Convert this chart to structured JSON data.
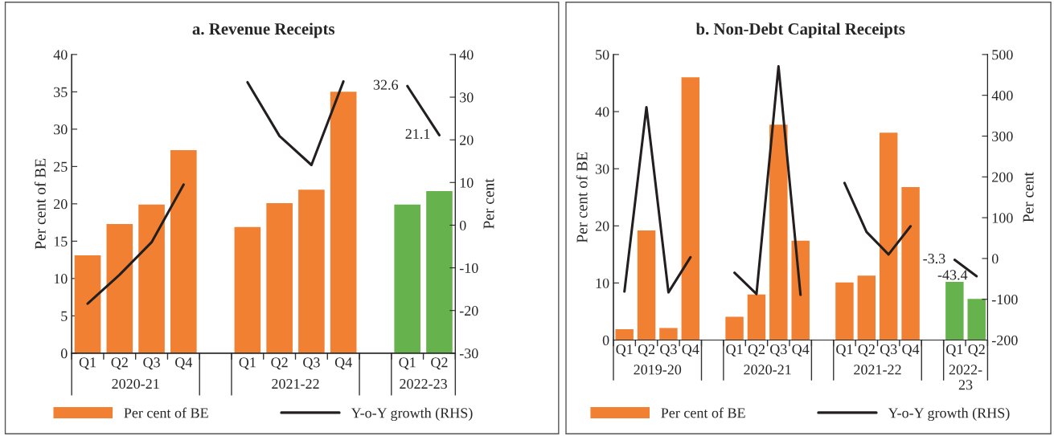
{
  "chart_data": [
    {
      "type": "bar",
      "title": "a. Revenue Receipts",
      "ylabel": "Per cent of BE",
      "y2label": "Per cent",
      "categories": [
        "Q1",
        "Q2",
        "Q3",
        "Q4",
        null,
        "Q1",
        "Q2",
        "Q3",
        "Q4",
        null,
        "Q1",
        "Q2"
      ],
      "annotations": [
        "2020-21",
        "2021-22",
        "2022-23"
      ],
      "ylim": [
        0,
        40
      ],
      "yticks": [
        0,
        5,
        10,
        15,
        20,
        25,
        30,
        35,
        40
      ],
      "y2lim": [
        -30,
        40
      ],
      "y2ticks": [
        -30,
        -20,
        -10,
        0,
        10,
        20,
        30,
        40
      ],
      "grid": false,
      "legend": "bottom",
      "series": [
        {
          "name": "Per cent of BE",
          "color": "#f28032",
          "colors": [
            "#f28032",
            "#f28032",
            "#f28032",
            "#f28032",
            "#f28032",
            "#f28032",
            "#f28032",
            "#f28032",
            "#f28032",
            "#f28032",
            "#66b34e",
            "#66b34e"
          ],
          "values": [
            13.1,
            17.3,
            19.9,
            27.2,
            null,
            16.9,
            20.1,
            21.9,
            35.0,
            null,
            19.9,
            21.7
          ]
        },
        {
          "name": "Y-o-Y growth (RHS)",
          "type": "line",
          "axis": "y2",
          "color": "#231f20",
          "values": [
            -18.4,
            -11.6,
            -4.0,
            9.5,
            null,
            33.5,
            20.9,
            14.1,
            33.7,
            null,
            32.6,
            21.1
          ],
          "value_labels": [
            null,
            null,
            null,
            null,
            null,
            null,
            null,
            null,
            null,
            null,
            "32.6",
            "21.1"
          ]
        }
      ]
    },
    {
      "type": "bar",
      "title": "b. Non-Debt Capital Receipts",
      "ylabel": "Per cent of BE",
      "y2label": "Per cent",
      "categories": [
        "Q1",
        "Q2",
        "Q3",
        "Q4",
        null,
        "Q1",
        "Q2",
        "Q3",
        "Q4",
        null,
        "Q1",
        "Q2",
        "Q3",
        "Q4",
        null,
        "Q1",
        "Q2"
      ],
      "annotations": [
        "2019-20",
        "2020-21",
        "2021-22",
        "2022-23"
      ],
      "ylim": [
        0,
        50
      ],
      "yticks": [
        0,
        10,
        20,
        30,
        40,
        50
      ],
      "y2lim": [
        -200,
        500
      ],
      "y2ticks": [
        -200,
        -100,
        0,
        100,
        200,
        300,
        400,
        500
      ],
      "grid": false,
      "legend": "bottom",
      "series": [
        {
          "name": "Per cent of BE",
          "color": "#f28032",
          "colors": [
            "#f28032",
            "#f28032",
            "#f28032",
            "#f28032",
            "#f28032",
            "#f28032",
            "#f28032",
            "#f28032",
            "#f28032",
            "#f28032",
            "#f28032",
            "#f28032",
            "#f28032",
            "#f28032",
            "#f28032",
            "#66b34e",
            "#66b34e"
          ],
          "values": [
            1.9,
            19.2,
            2.1,
            46.0,
            null,
            4.1,
            8.0,
            37.7,
            17.4,
            null,
            10.1,
            11.3,
            36.3,
            26.8,
            null,
            10.2,
            7.2
          ]
        },
        {
          "name": "Y-o-Y growth (RHS)",
          "type": "line",
          "axis": "y2",
          "color": "#231f20",
          "values": [
            -81,
            371,
            -83,
            3,
            null,
            -35,
            -87,
            471,
            -89,
            null,
            185,
            65,
            10,
            79,
            null,
            -3.3,
            -43.4
          ],
          "value_labels": [
            null,
            null,
            null,
            null,
            null,
            null,
            null,
            null,
            null,
            null,
            null,
            null,
            null,
            null,
            null,
            "-3.3",
            "-43.4"
          ]
        }
      ]
    }
  ]
}
